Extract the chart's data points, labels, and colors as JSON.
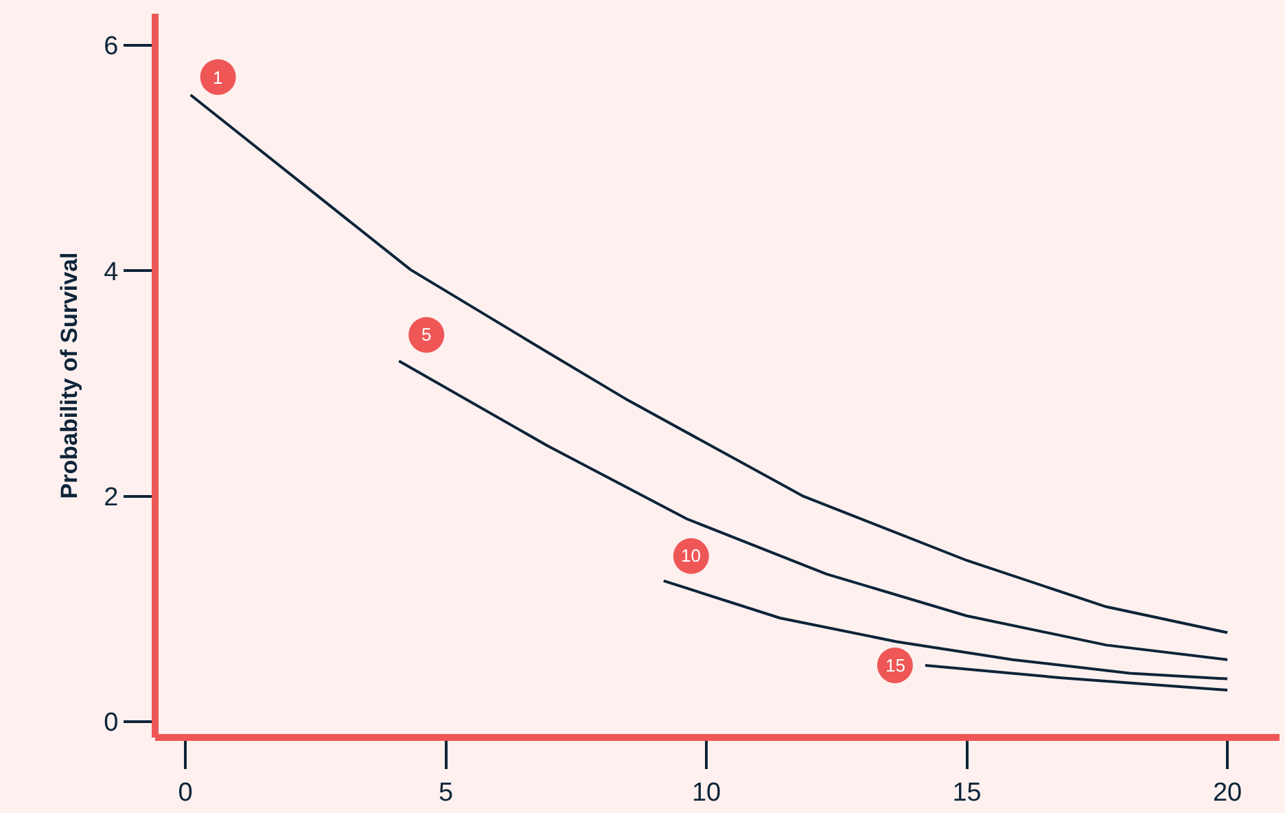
{
  "chart_data": {
    "type": "line",
    "ylabel": "Probability of Survival",
    "xlim": [
      -0.58,
      21
    ],
    "ylim": [
      -0.14,
      6.28
    ],
    "xticks": [
      0,
      5,
      10,
      15,
      20
    ],
    "yticks": [
      0,
      2,
      4,
      6
    ],
    "grid": false,
    "legend": false,
    "marker": "none",
    "line_style": "solid",
    "series": [
      {
        "name": "1",
        "color": "#0d2438",
        "x": [
          0.1,
          4.32,
          6.94,
          8.5,
          11.86,
          15.0,
          17.67,
          20
        ],
        "values": [
          5.56,
          4.01,
          3.28,
          2.85,
          2.0,
          1.43,
          1.02,
          0.79
        ]
      },
      {
        "name": "5",
        "color": "#0d2438",
        "x": [
          4.1,
          6.94,
          9.62,
          12.3,
          14.99,
          17.67,
          20
        ],
        "values": [
          3.2,
          2.45,
          1.8,
          1.31,
          0.94,
          0.68,
          0.55
        ]
      },
      {
        "name": "10",
        "color": "#0d2438",
        "x": [
          9.18,
          11.41,
          13.65,
          15.88,
          18.13,
          20
        ],
        "values": [
          1.25,
          0.92,
          0.71,
          0.55,
          0.43,
          0.38
        ]
      },
      {
        "name": "15",
        "color": "#0d2438",
        "x": [
          14.2,
          16.78,
          20
        ],
        "values": [
          0.5,
          0.39,
          0.28
        ]
      }
    ]
  }
}
